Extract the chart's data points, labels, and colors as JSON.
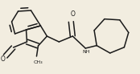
{
  "bg_color": "#f2ede0",
  "line_color": "#1a1a1a",
  "lw": 1.1,
  "figsize": [
    1.74,
    0.92
  ],
  "dpi": 100,
  "xlim": [
    0,
    174
  ],
  "ylim": [
    0,
    92
  ]
}
